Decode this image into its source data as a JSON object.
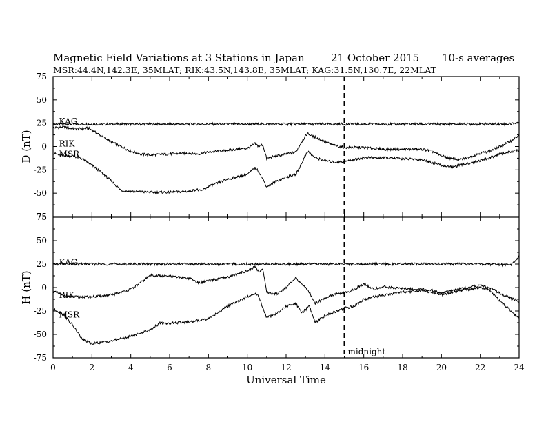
{
  "header": {
    "title": "Magnetic Field Variations at 3 Stations in Japan",
    "date": "21 October 2015",
    "averaging": "10-s averages",
    "stations_line": "MSR:44.4N,142.3E, 35MLAT;  RIK:43.5N,143.8E, 35MLAT;  KAG:31.5N,130.7E, 22MLAT"
  },
  "chart_data": [
    {
      "type": "line",
      "panel": "top",
      "ylabel": "D (nT)",
      "xlabel": "",
      "xlim": [
        0,
        24
      ],
      "ylim": [
        -75,
        75
      ],
      "y_ticks": [
        -75,
        -50,
        -25,
        0,
        25,
        50,
        75
      ],
      "grid": false,
      "series": [
        {
          "name": "KAG",
          "label_at": [
            0.2,
            27
          ],
          "points": [
            [
              0,
              24
            ],
            [
              2,
              24
            ],
            [
              4,
              24
            ],
            [
              6,
              24
            ],
            [
              8,
              24
            ],
            [
              10,
              24
            ],
            [
              12,
              24
            ],
            [
              14,
              24
            ],
            [
              16,
              24
            ],
            [
              18,
              24
            ],
            [
              20,
              24
            ],
            [
              22,
              24
            ],
            [
              23.5,
              24
            ],
            [
              24,
              26
            ]
          ]
        },
        {
          "name": "RIK",
          "label_at": [
            0.2,
            3
          ],
          "points": [
            [
              0,
              20
            ],
            [
              0.5,
              21
            ],
            [
              1,
              19
            ],
            [
              1.5,
              19
            ],
            [
              1.8,
              20
            ],
            [
              2.2,
              15
            ],
            [
              3,
              5
            ],
            [
              4,
              -5
            ],
            [
              4.5,
              -8
            ],
            [
              5,
              -9
            ],
            [
              6,
              -8
            ],
            [
              7,
              -7
            ],
            [
              7.5,
              -8
            ],
            [
              8,
              -6
            ],
            [
              9,
              -4
            ],
            [
              10,
              -2
            ],
            [
              10.4,
              3
            ],
            [
              10.6,
              0
            ],
            [
              10.8,
              2
            ],
            [
              11,
              -13
            ],
            [
              11.3,
              -11
            ],
            [
              12,
              -8
            ],
            [
              12.5,
              -6
            ],
            [
              12.8,
              5
            ],
            [
              13.1,
              14
            ],
            [
              13.5,
              10
            ],
            [
              14,
              5
            ],
            [
              14.5,
              1
            ],
            [
              15,
              -1
            ],
            [
              16,
              -1
            ],
            [
              17,
              -3
            ],
            [
              18,
              -3
            ],
            [
              19,
              -3
            ],
            [
              19.5,
              -5
            ],
            [
              20,
              -10
            ],
            [
              20.5,
              -13
            ],
            [
              21,
              -14
            ],
            [
              21.5,
              -11
            ],
            [
              22,
              -7
            ],
            [
              22.5,
              -5
            ],
            [
              23,
              0
            ],
            [
              23.5,
              5
            ],
            [
              24,
              12
            ]
          ]
        },
        {
          "name": "MSR",
          "label_at": [
            0.2,
            -8
          ],
          "points": [
            [
              0,
              -7
            ],
            [
              0.5,
              -10
            ],
            [
              1,
              -10
            ],
            [
              1.5,
              -13
            ],
            [
              2,
              -20
            ],
            [
              2.5,
              -28
            ],
            [
              3,
              -37
            ],
            [
              3.5,
              -47
            ],
            [
              4,
              -48
            ],
            [
              5,
              -49
            ],
            [
              6,
              -49
            ],
            [
              7,
              -48
            ],
            [
              7.4,
              -46
            ],
            [
              7.6,
              -48
            ],
            [
              8,
              -43
            ],
            [
              9,
              -35
            ],
            [
              10,
              -30
            ],
            [
              10.4,
              -23
            ],
            [
              10.6,
              -27
            ],
            [
              10.8,
              -35
            ],
            [
              11,
              -43
            ],
            [
              11.5,
              -37
            ],
            [
              12,
              -33
            ],
            [
              12.5,
              -30
            ],
            [
              12.8,
              -18
            ],
            [
              13.1,
              -5
            ],
            [
              13.5,
              -12
            ],
            [
              14,
              -15
            ],
            [
              14.5,
              -17
            ],
            [
              15,
              -16
            ],
            [
              16,
              -12
            ],
            [
              17,
              -12
            ],
            [
              18,
              -13
            ],
            [
              19,
              -14
            ],
            [
              20,
              -20
            ],
            [
              20.5,
              -22
            ],
            [
              21,
              -20
            ],
            [
              22,
              -15
            ],
            [
              22.5,
              -12
            ],
            [
              23,
              -8
            ],
            [
              24,
              -4
            ]
          ]
        }
      ]
    },
    {
      "type": "line",
      "panel": "bottom",
      "ylabel": "H (nT)",
      "xlabel": "Universal Time",
      "xlim": [
        0,
        24
      ],
      "ylim": [
        -75,
        75
      ],
      "x_ticks": [
        0,
        2,
        4,
        6,
        8,
        10,
        12,
        14,
        16,
        18,
        20,
        22,
        24
      ],
      "y_ticks": [
        -75,
        -50,
        -25,
        0,
        25,
        50,
        75
      ],
      "grid": false,
      "series": [
        {
          "name": "KAG",
          "label_at": [
            0.2,
            27
          ],
          "points": [
            [
              0,
              25
            ],
            [
              2,
              25
            ],
            [
              4,
              25
            ],
            [
              6,
              25
            ],
            [
              8,
              25
            ],
            [
              10,
              25
            ],
            [
              12,
              25
            ],
            [
              14,
              25
            ],
            [
              16,
              25
            ],
            [
              18,
              25
            ],
            [
              20,
              25
            ],
            [
              22,
              25
            ],
            [
              23.6,
              24
            ],
            [
              24,
              33
            ]
          ]
        },
        {
          "name": "RIK",
          "label_at": [
            0.2,
            -8
          ],
          "points": [
            [
              0,
              -4
            ],
            [
              0.5,
              -8
            ],
            [
              1,
              -10
            ],
            [
              2,
              -10
            ],
            [
              3,
              -8
            ],
            [
              4,
              -2
            ],
            [
              4.5,
              5
            ],
            [
              5,
              13
            ],
            [
              6,
              12
            ],
            [
              7,
              10
            ],
            [
              7.5,
              5
            ],
            [
              8,
              7
            ],
            [
              9,
              11
            ],
            [
              10,
              18
            ],
            [
              10.4,
              22
            ],
            [
              10.6,
              17
            ],
            [
              10.8,
              20
            ],
            [
              11,
              -5
            ],
            [
              11.5,
              -7
            ],
            [
              12,
              0
            ],
            [
              12.5,
              10
            ],
            [
              12.9,
              2
            ],
            [
              13.2,
              -5
            ],
            [
              13.5,
              -17
            ],
            [
              14,
              -11
            ],
            [
              14.5,
              -7
            ],
            [
              15,
              -6
            ],
            [
              15.5,
              -2
            ],
            [
              16,
              4
            ],
            [
              16.5,
              -2
            ],
            [
              17,
              1
            ],
            [
              18,
              -1
            ],
            [
              19,
              -2
            ],
            [
              19.5,
              -3
            ],
            [
              20,
              -6
            ],
            [
              21,
              -1
            ],
            [
              22,
              2
            ],
            [
              22.5,
              0
            ],
            [
              23,
              -6
            ],
            [
              24,
              -15
            ]
          ]
        },
        {
          "name": "MSR",
          "label_at": [
            0.2,
            -29
          ],
          "points": [
            [
              0,
              -23
            ],
            [
              0.5,
              -28
            ],
            [
              1,
              -40
            ],
            [
              1.5,
              -55
            ],
            [
              2,
              -60
            ],
            [
              3,
              -57
            ],
            [
              4,
              -52
            ],
            [
              5,
              -45
            ],
            [
              5.5,
              -38
            ],
            [
              6,
              -38
            ],
            [
              7,
              -37
            ],
            [
              8,
              -33
            ],
            [
              9,
              -20
            ],
            [
              10,
              -10
            ],
            [
              10.4,
              -6
            ],
            [
              10.6,
              -10
            ],
            [
              10.8,
              -22
            ],
            [
              11,
              -32
            ],
            [
              11.5,
              -28
            ],
            [
              12,
              -20
            ],
            [
              12.5,
              -17
            ],
            [
              12.8,
              -27
            ],
            [
              13.2,
              -20
            ],
            [
              13.5,
              -37
            ],
            [
              14,
              -30
            ],
            [
              14.5,
              -26
            ],
            [
              15,
              -22
            ],
            [
              15.5,
              -20
            ],
            [
              16,
              -13
            ],
            [
              16.5,
              -10
            ],
            [
              17,
              -8
            ],
            [
              18,
              -5
            ],
            [
              19,
              -3
            ],
            [
              20,
              -8
            ],
            [
              21,
              -3
            ],
            [
              22,
              0
            ],
            [
              22.5,
              -3
            ],
            [
              23,
              -14
            ],
            [
              24,
              -33
            ]
          ]
        }
      ]
    }
  ],
  "annotation": {
    "midnight_label": "midnight",
    "midnight_ut": 15
  }
}
